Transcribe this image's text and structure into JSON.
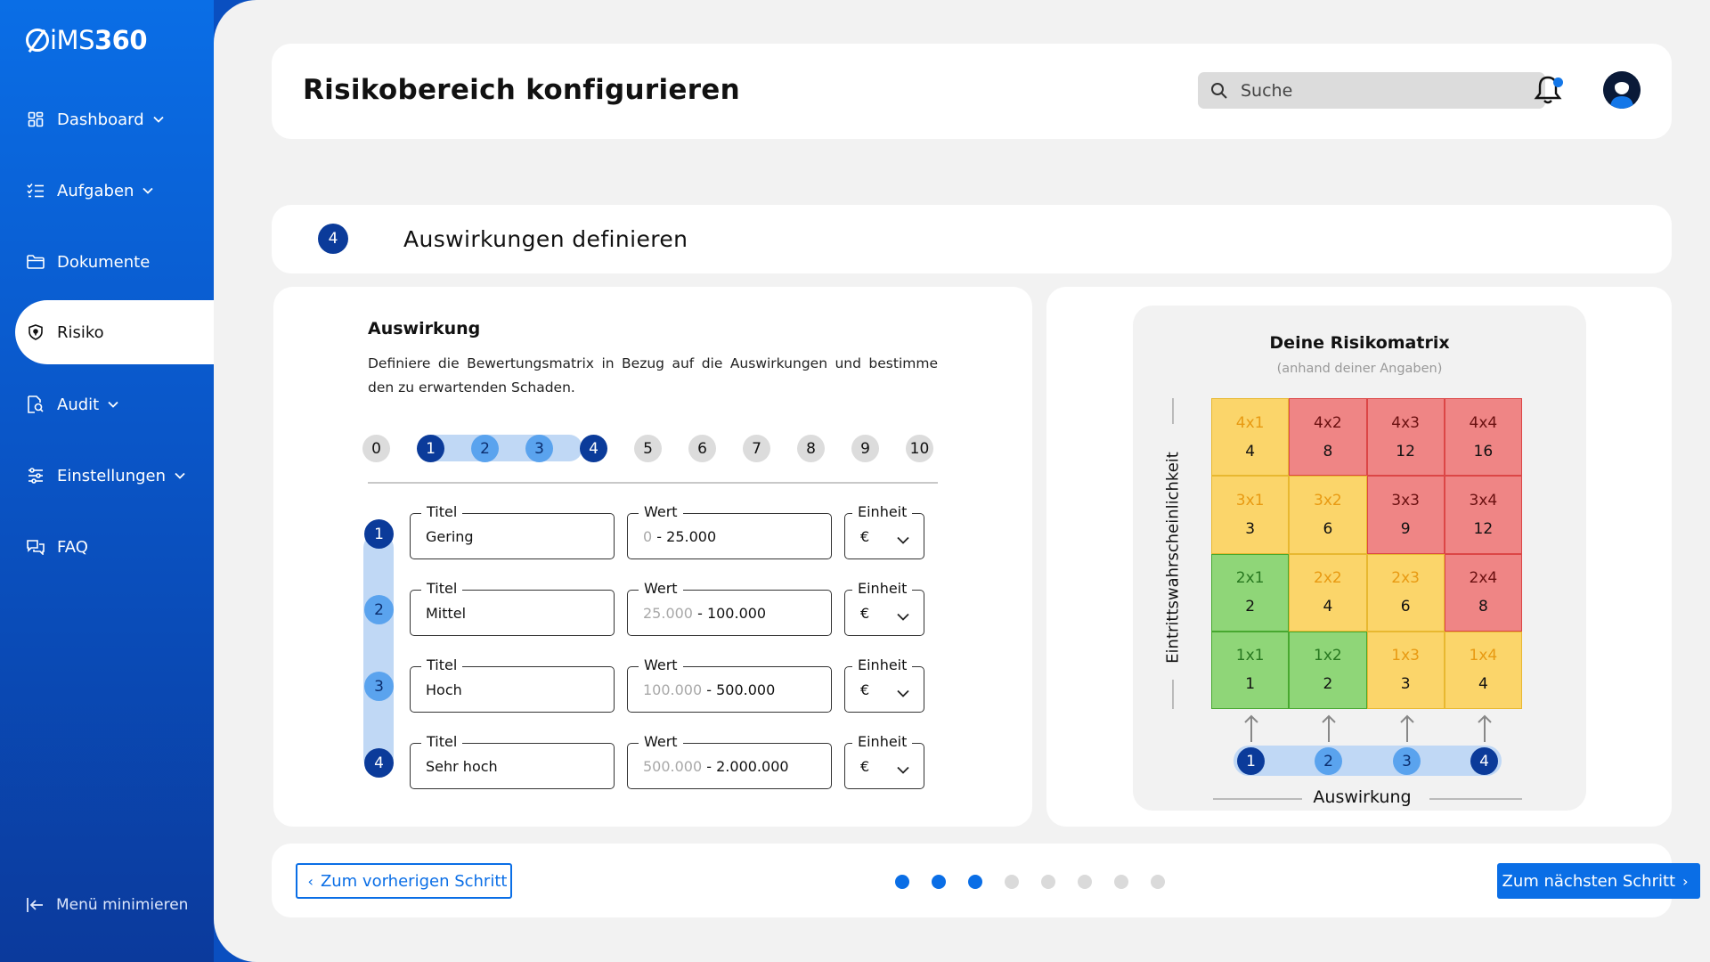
{
  "brand": {
    "name": "iMS",
    "name_strong": "360"
  },
  "sidebar": {
    "items": [
      {
        "label": "Dashboard",
        "icon": "dashboard-icon",
        "chevron": true
      },
      {
        "label": "Aufgaben",
        "icon": "tasks-icon",
        "chevron": true
      },
      {
        "label": "Dokumente",
        "icon": "folder-icon",
        "chevron": false
      },
      {
        "label": "Risiko",
        "icon": "shield-icon",
        "chevron": false,
        "active": true
      },
      {
        "label": "Audit",
        "icon": "audit-icon",
        "chevron": true
      },
      {
        "label": "Einstellungen",
        "icon": "sliders-icon",
        "chevron": true
      },
      {
        "label": "FAQ",
        "icon": "faq-icon",
        "chevron": false
      }
    ],
    "collapse_label": "Menü minimieren"
  },
  "header": {
    "title": "Risikobereich konfigurieren",
    "search_placeholder": "Suche",
    "has_notification": true
  },
  "step": {
    "number": "4",
    "title": "Auswirkungen definieren"
  },
  "impact": {
    "title": "Auswirkung",
    "description": "Definiere die  Bewertungsmatrix in Bezug auf die Auswirkungen und bestimme den zu erwartenden Schaden.",
    "scale": [
      "0",
      "1",
      "2",
      "3",
      "4",
      "5",
      "6",
      "7",
      "8",
      "9",
      "10"
    ],
    "selected_levels": 4,
    "labels": {
      "title": "Titel",
      "value": "Wert",
      "unit": "Einheit"
    },
    "rows": [
      {
        "number": "1",
        "title": "Gering",
        "value_from": "0",
        "value_sep": " - ",
        "value_to": "25.000",
        "unit": "€"
      },
      {
        "number": "2",
        "title": "Mittel",
        "value_from": "25.000",
        "value_sep": " - ",
        "value_to": "100.000",
        "unit": "€"
      },
      {
        "number": "3",
        "title": "Hoch",
        "value_from": "100.000",
        "value_sep": " - ",
        "value_to": "500.000",
        "unit": "€"
      },
      {
        "number": "4",
        "title": "Sehr hoch",
        "value_from": "500.000",
        "value_sep": " - ",
        "value_to": "2.000.000",
        "unit": "€"
      }
    ]
  },
  "matrix": {
    "title": "Deine Risikomatrix",
    "subtitle": "(anhand deiner Angaben)",
    "y_label": "Eintrittswahrscheinlichkeit",
    "x_label": "Auswirkung",
    "x_levels": [
      "1",
      "2",
      "3",
      "4"
    ],
    "colors": {
      "green": "#8fd678",
      "yellow": "#fbd56a",
      "red": "#ef8585"
    },
    "cells": [
      [
        {
          "label": "4x1",
          "value": "4",
          "color": "yellow"
        },
        {
          "label": "4x2",
          "value": "8",
          "color": "red"
        },
        {
          "label": "4x3",
          "value": "12",
          "color": "red"
        },
        {
          "label": "4x4",
          "value": "16",
          "color": "red"
        }
      ],
      [
        {
          "label": "3x1",
          "value": "3",
          "color": "yellow"
        },
        {
          "label": "3x2",
          "value": "6",
          "color": "yellow"
        },
        {
          "label": "3x3",
          "value": "9",
          "color": "red"
        },
        {
          "label": "3x4",
          "value": "12",
          "color": "red"
        }
      ],
      [
        {
          "label": "2x1",
          "value": "2",
          "color": "green"
        },
        {
          "label": "2x2",
          "value": "4",
          "color": "yellow"
        },
        {
          "label": "2x3",
          "value": "6",
          "color": "yellow"
        },
        {
          "label": "2x4",
          "value": "8",
          "color": "red"
        }
      ],
      [
        {
          "label": "1x1",
          "value": "1",
          "color": "green"
        },
        {
          "label": "1x2",
          "value": "2",
          "color": "green"
        },
        {
          "label": "1x3",
          "value": "3",
          "color": "yellow"
        },
        {
          "label": "1x4",
          "value": "4",
          "color": "yellow"
        }
      ]
    ]
  },
  "footer": {
    "prev_label": "Zum vorherigen Schritt",
    "next_label": "Zum nächsten Schritt",
    "total_steps": 8,
    "completed_steps": 3
  },
  "accent_color": "#0a6ee6"
}
